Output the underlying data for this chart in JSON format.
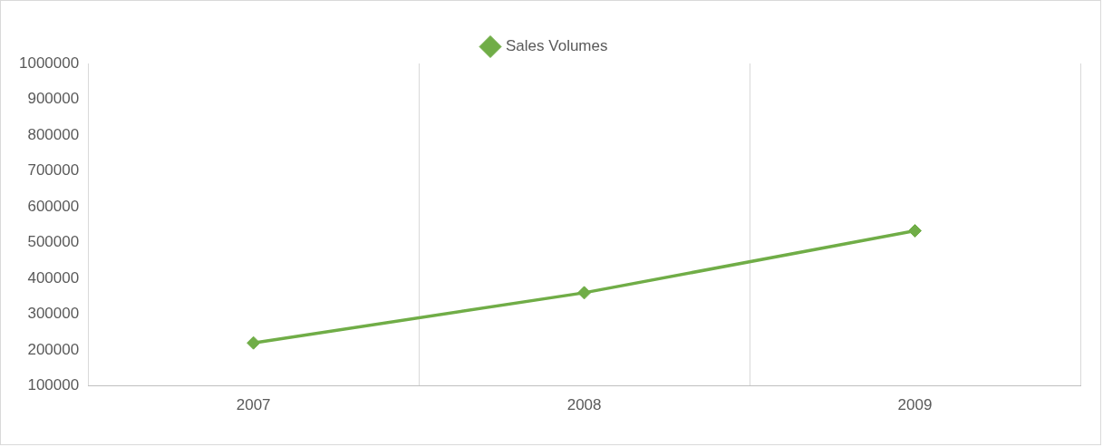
{
  "chart_data": {
    "type": "line",
    "categories": [
      "2007",
      "2008",
      "2009"
    ],
    "series": [
      {
        "name": "Sales Volumes",
        "color": "#70ad47",
        "values": [
          220000,
          360000,
          533000
        ]
      }
    ],
    "ylim": [
      100000,
      1000000
    ],
    "yticks": [
      100000,
      200000,
      300000,
      400000,
      500000,
      600000,
      700000,
      800000,
      900000,
      1000000
    ],
    "grid": "x",
    "legend": "top",
    "marker": "diamond",
    "line_style": "solid"
  }
}
